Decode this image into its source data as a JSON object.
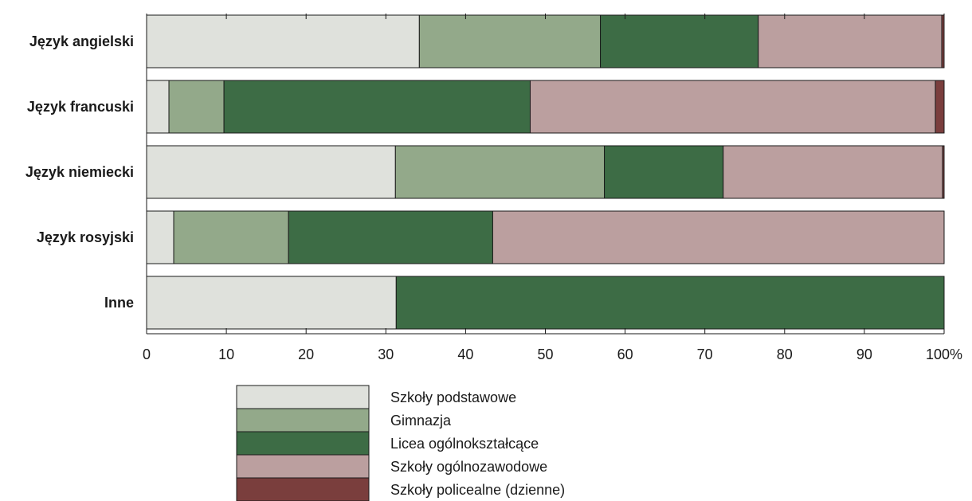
{
  "chart_data": {
    "type": "bar",
    "orientation": "horizontal",
    "stacked": true,
    "categories": [
      "Język angielski",
      "Język francuski",
      "Język niemiecki",
      "Język rosyjski",
      "Inne"
    ],
    "series": [
      {
        "name": "Szkoły podstawowe",
        "color": "#dfe1dc",
        "values": [
          34.2,
          2.8,
          31.2,
          3.4,
          31.3
        ]
      },
      {
        "name": "Gimnazja",
        "color": "#93a98a",
        "values": [
          22.7,
          6.9,
          26.2,
          14.4,
          0
        ]
      },
      {
        "name": "Licea ogólnokształcące",
        "color": "#3d6c45",
        "values": [
          19.8,
          38.4,
          14.9,
          25.6,
          68.7
        ]
      },
      {
        "name": "Szkoły ogólnozawodowe",
        "color": "#bb9f9f",
        "values": [
          23.0,
          50.8,
          27.5,
          56.6,
          0
        ]
      },
      {
        "name": "Szkoły policealne (dzienne)",
        "color": "#7a3e3d",
        "values": [
          0.3,
          1.1,
          0.2,
          0,
          0
        ]
      }
    ],
    "x_ticks": [
      "0",
      "10",
      "20",
      "30",
      "40",
      "50",
      "60",
      "70",
      "80",
      "90",
      "100%"
    ],
    "xlim": [
      0,
      100
    ],
    "grid": false,
    "legend_position": "bottom"
  }
}
